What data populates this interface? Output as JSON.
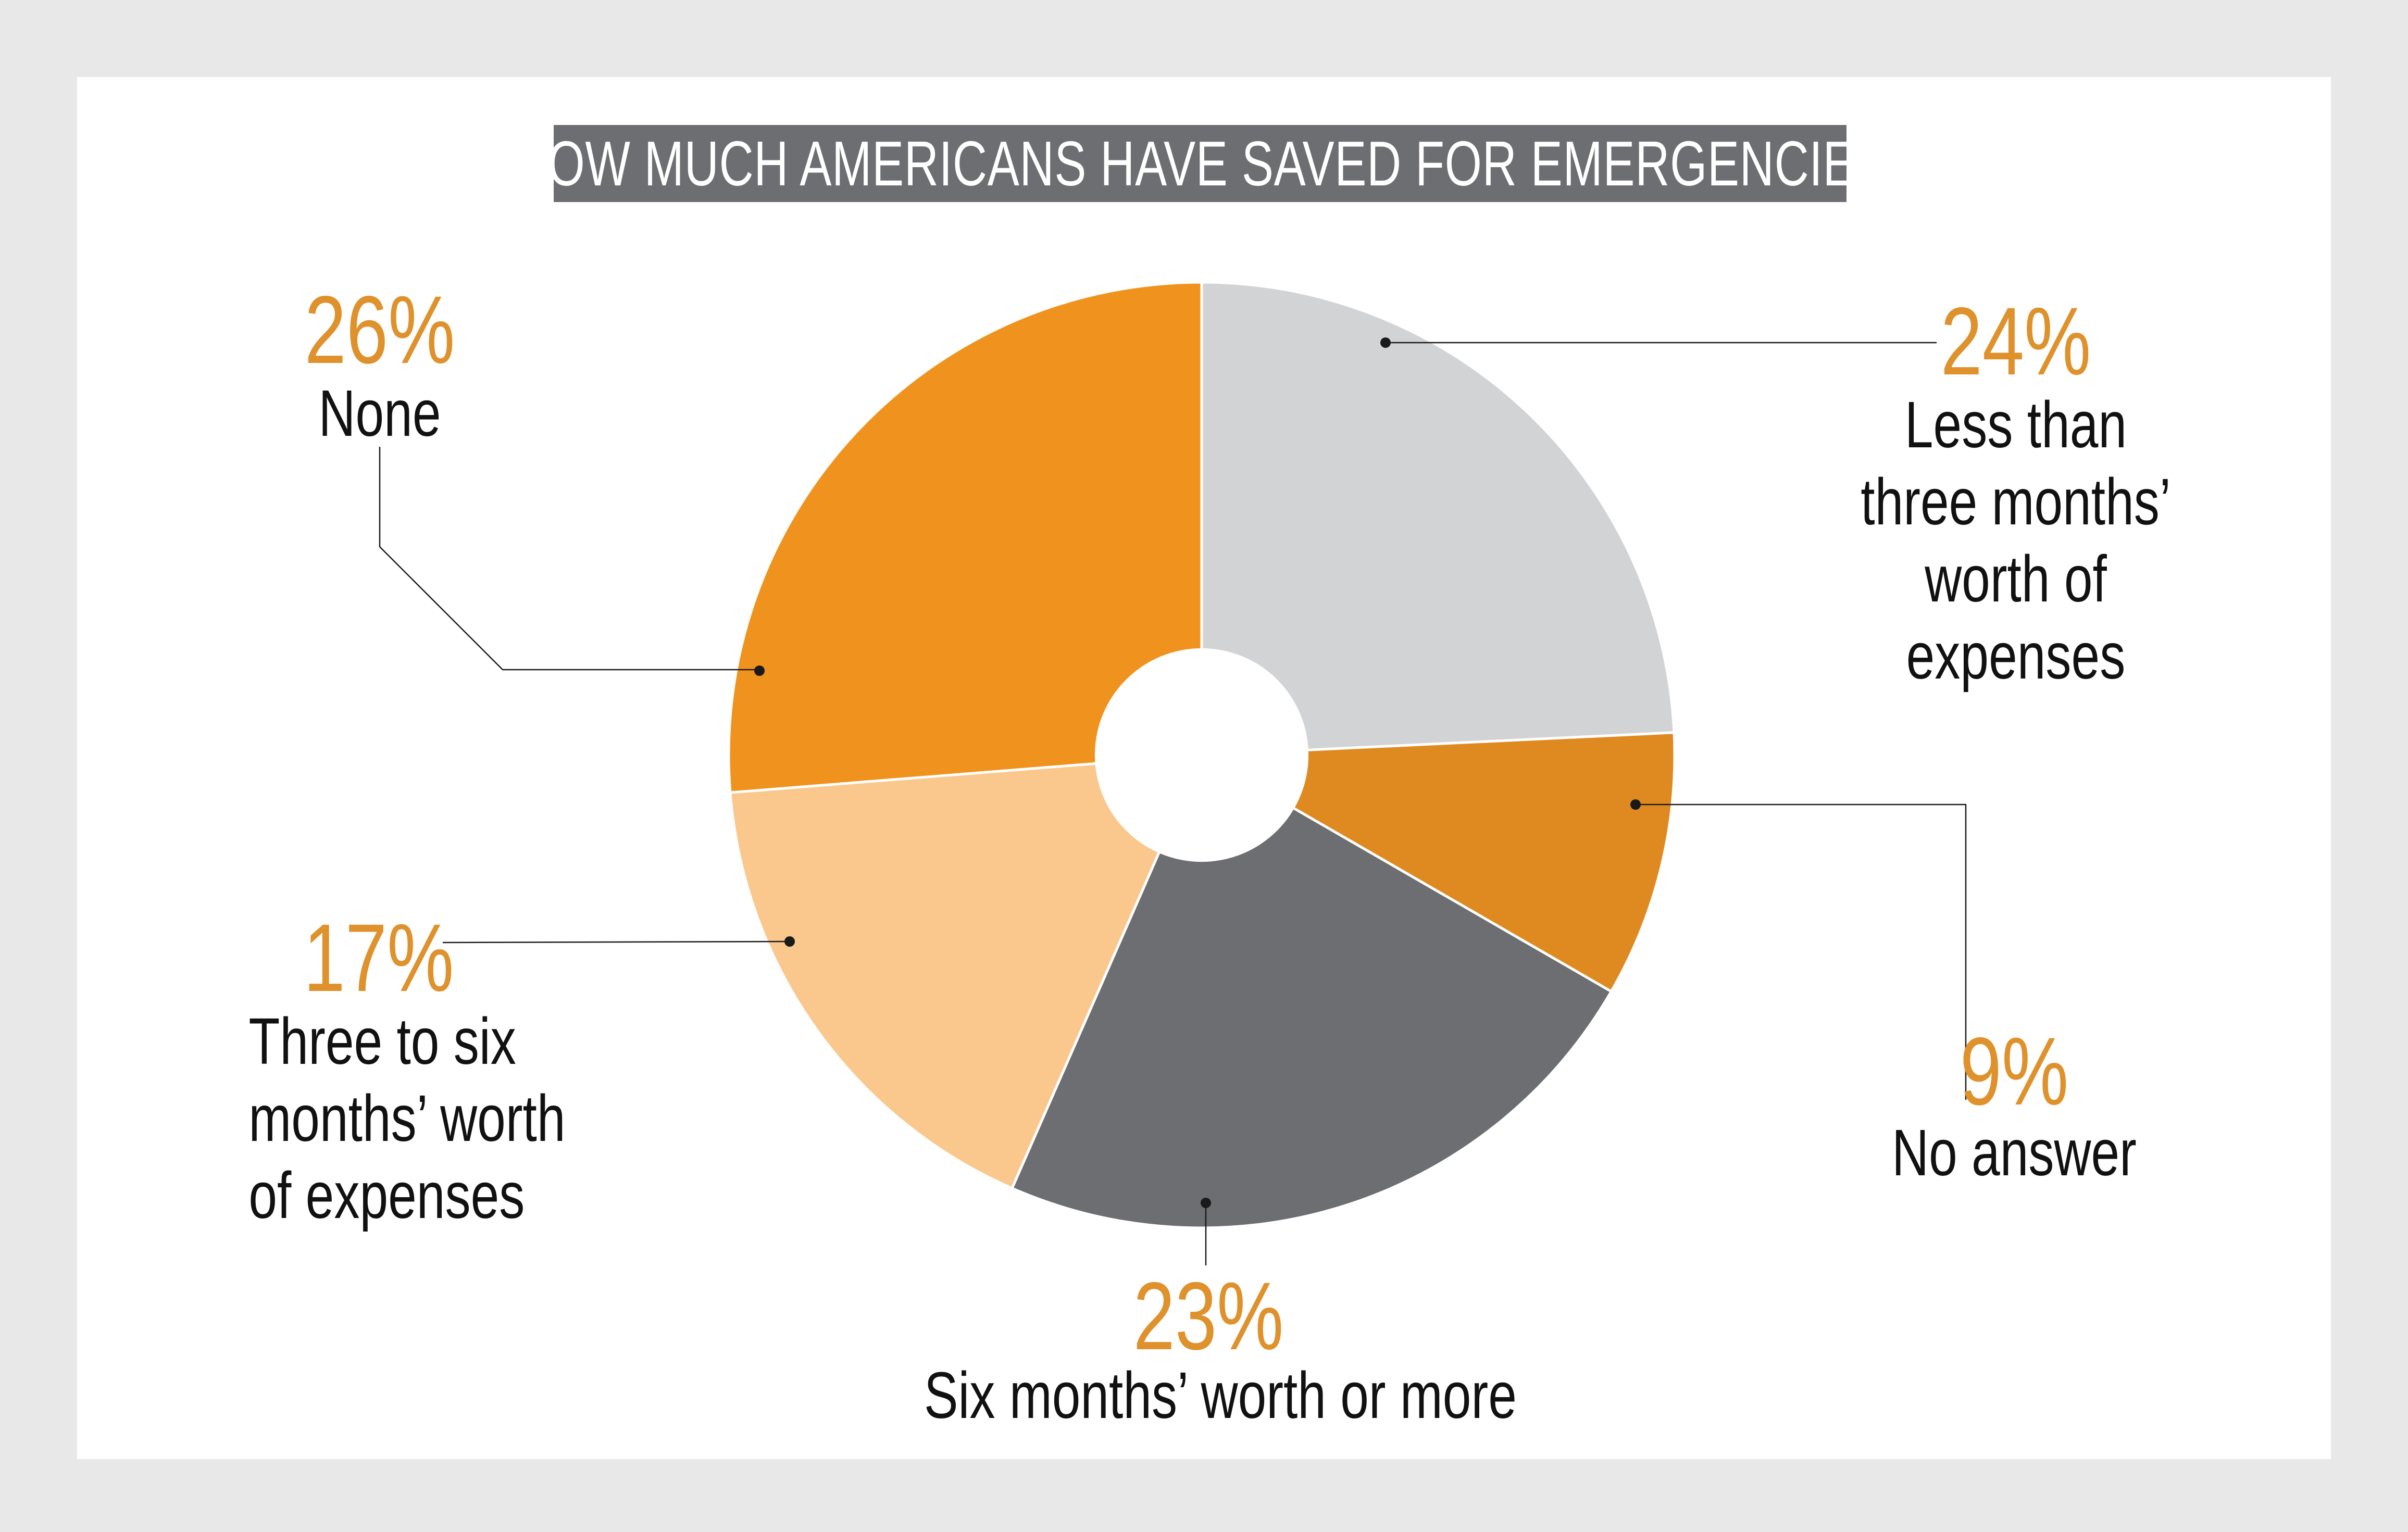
{
  "title": "HOW MUCH AMERICANS HAVE SAVED FOR EMERGENCIES",
  "colors": {
    "background": "#E8E8E9",
    "card": "#FFFFFF",
    "title_bar": "#6D6E71",
    "title_text": "#FFFFFF",
    "percent": "#DF912C",
    "label": "#111111",
    "leader": "#1A1A1A",
    "divider": "#FFFFFF"
  },
  "chart_data": {
    "type": "pie",
    "title": "HOW MUCH AMERICANS HAVE SAVED FOR EMERGENCIES",
    "unit": "%",
    "direction": "clockwise",
    "start_angle_deg": 0,
    "donut_hole_ratio": 0.226,
    "grid": false,
    "legend": "callout-labels",
    "slices": [
      {
        "label": "Less than three months’ worth of expenses",
        "value": 24,
        "color": "#D2D3D5"
      },
      {
        "label": "No answer",
        "value": 9,
        "color": "#DF8A20"
      },
      {
        "label": "Six months’ worth or more",
        "value": 23,
        "color": "#6D6E71"
      },
      {
        "label": "Three to six months’ worth of expenses",
        "value": 17,
        "color": "#FAC88D"
      },
      {
        "label": "None",
        "value": 26,
        "color": "#F0931E"
      }
    ]
  },
  "labels": {
    "none": {
      "pct": "26%",
      "lines": [
        "None"
      ]
    },
    "less3": {
      "pct": "24%",
      "lines": [
        "Less than",
        "three months’",
        "worth of",
        "expenses"
      ]
    },
    "noanswer": {
      "pct": "9%",
      "lines": [
        "No answer"
      ]
    },
    "sixmore": {
      "pct": "23%",
      "lines": [
        "Six months’ worth or more"
      ]
    },
    "three6": {
      "pct": "17%",
      "lines": [
        "Three to six",
        "months’ worth",
        "of expenses"
      ]
    }
  }
}
